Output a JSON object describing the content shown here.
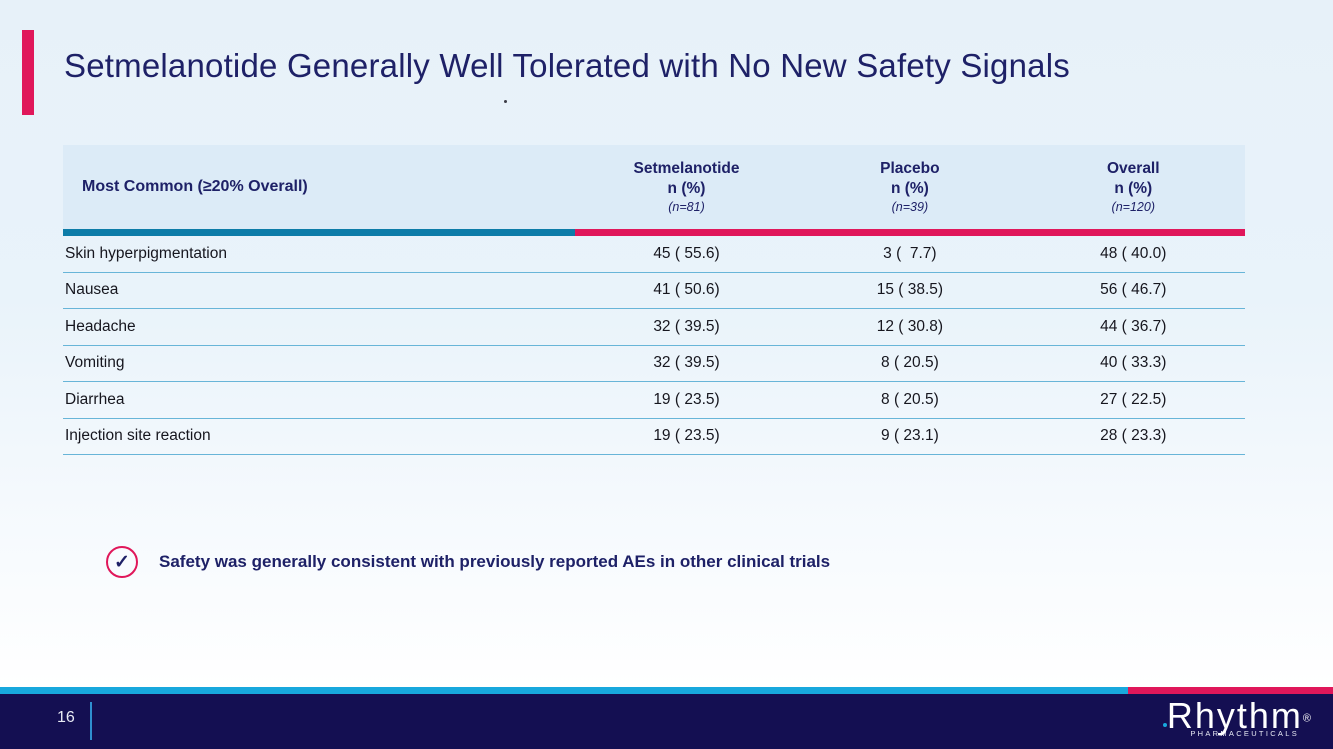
{
  "colors": {
    "navy": "#1e2167",
    "pink": "#e0175a",
    "teal": "#0d7ca8",
    "cyan": "#18a8dd",
    "row-line": "#68b5d8",
    "footer-navy": "#140f52",
    "header-bg": "#dcebf7",
    "body-text": "#16161e"
  },
  "header": {
    "title": "Setmelanotide Generally Well Tolerated with No New Safety Signals"
  },
  "table": {
    "label_header": "Most Common (≥20% Overall)",
    "columns": [
      {
        "name": "Setmelanotide",
        "sub": "n (%)",
        "n": "(n=81)"
      },
      {
        "name": "Placebo",
        "sub": "n (%)",
        "n": "(n=39)"
      },
      {
        "name": "Overall",
        "sub": "n (%)",
        "n": "(n=120)"
      }
    ],
    "rows": [
      {
        "label": "Skin hyperpigmentation",
        "setmelanotide": "45 ( 55.6)",
        "placebo": "3 (  7.7)",
        "overall": "48 ( 40.0)"
      },
      {
        "label": "Nausea",
        "setmelanotide": "41 ( 50.6)",
        "placebo": "15 ( 38.5)",
        "overall": "56 ( 46.7)"
      },
      {
        "label": "Headache",
        "setmelanotide": "32 ( 39.5)",
        "placebo": "12 ( 30.8)",
        "overall": "44 ( 36.7)"
      },
      {
        "label": "Vomiting",
        "setmelanotide": "32 ( 39.5)",
        "placebo": "8 ( 20.5)",
        "overall": "40 ( 33.3)"
      },
      {
        "label": "Diarrhea",
        "setmelanotide": "19 ( 23.5)",
        "placebo": "8 ( 20.5)",
        "overall": "27 ( 22.5)"
      },
      {
        "label": "Injection site reaction",
        "setmelanotide": "19 ( 23.5)",
        "placebo": "9 ( 23.1)",
        "overall": "28 ( 23.3)"
      }
    ]
  },
  "callout": {
    "check_glyph": "✓",
    "text": "Safety was generally consistent with previously reported AEs in other clinical trials"
  },
  "footer": {
    "page_number": "16",
    "brand": "Rhythm",
    "registered": "®",
    "brand_sub": "PHARMACEUTICALS"
  }
}
